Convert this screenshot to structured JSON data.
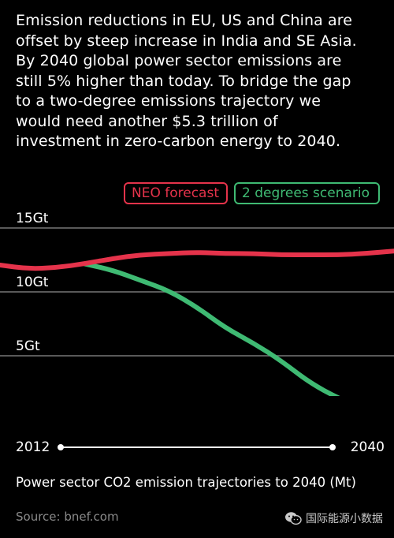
{
  "headline": "Emission reductions in EU, US and China are\noffset by steep increase in India and SE Asia.\nBy 2040 global power sector emissions are\nstill 5% higher than today. To bridge the gap\nto a two-degree emissions trajectory we\nwould need another $5.3 trillion of\ninvestment in zero-carbon energy to 2040.",
  "legend": [
    {
      "label": "NEO forecast",
      "color": "#e5334b"
    },
    {
      "label": "2 degrees scenario",
      "color": "#3fba73"
    }
  ],
  "timeline": {
    "start_label": "2012",
    "end_label": "2040"
  },
  "caption": "Power sector CO2 emission trajectories to 2040 (Mt)",
  "source": "Source: bnef.com",
  "watermark": {
    "text": "国际能源小数据",
    "icon": "wechat-icon"
  },
  "chart_data": {
    "type": "line",
    "title": "",
    "xlabel": "",
    "ylabel": "",
    "xlim": [
      2012,
      2040
    ],
    "ylim": [
      0,
      16
    ],
    "ytick_labels": [
      "15Gt",
      "10Gt",
      "5Gt"
    ],
    "ytick_values": [
      15,
      10,
      5
    ],
    "grid": true,
    "series": [
      {
        "name": "NEO forecast",
        "color": "#e5334b",
        "x": [
          2012,
          2014,
          2016,
          2018,
          2020,
          2022,
          2024,
          2026,
          2028,
          2030,
          2032,
          2034,
          2036,
          2038,
          2040
        ],
        "y": [
          12.1,
          11.8,
          11.9,
          12.2,
          12.6,
          12.9,
          13.0,
          13.1,
          13.0,
          13.0,
          12.9,
          12.9,
          12.9,
          13.0,
          13.2
        ]
      },
      {
        "name": "2 degrees scenario",
        "color": "#3fba73",
        "x": [
          2018,
          2020,
          2022,
          2024,
          2026,
          2028,
          2030,
          2032,
          2034,
          2036,
          2038,
          2040
        ],
        "y": [
          12.2,
          11.7,
          10.9,
          10.1,
          8.8,
          7.2,
          6.0,
          4.6,
          2.9,
          1.7,
          0.8,
          0.3
        ]
      }
    ]
  }
}
